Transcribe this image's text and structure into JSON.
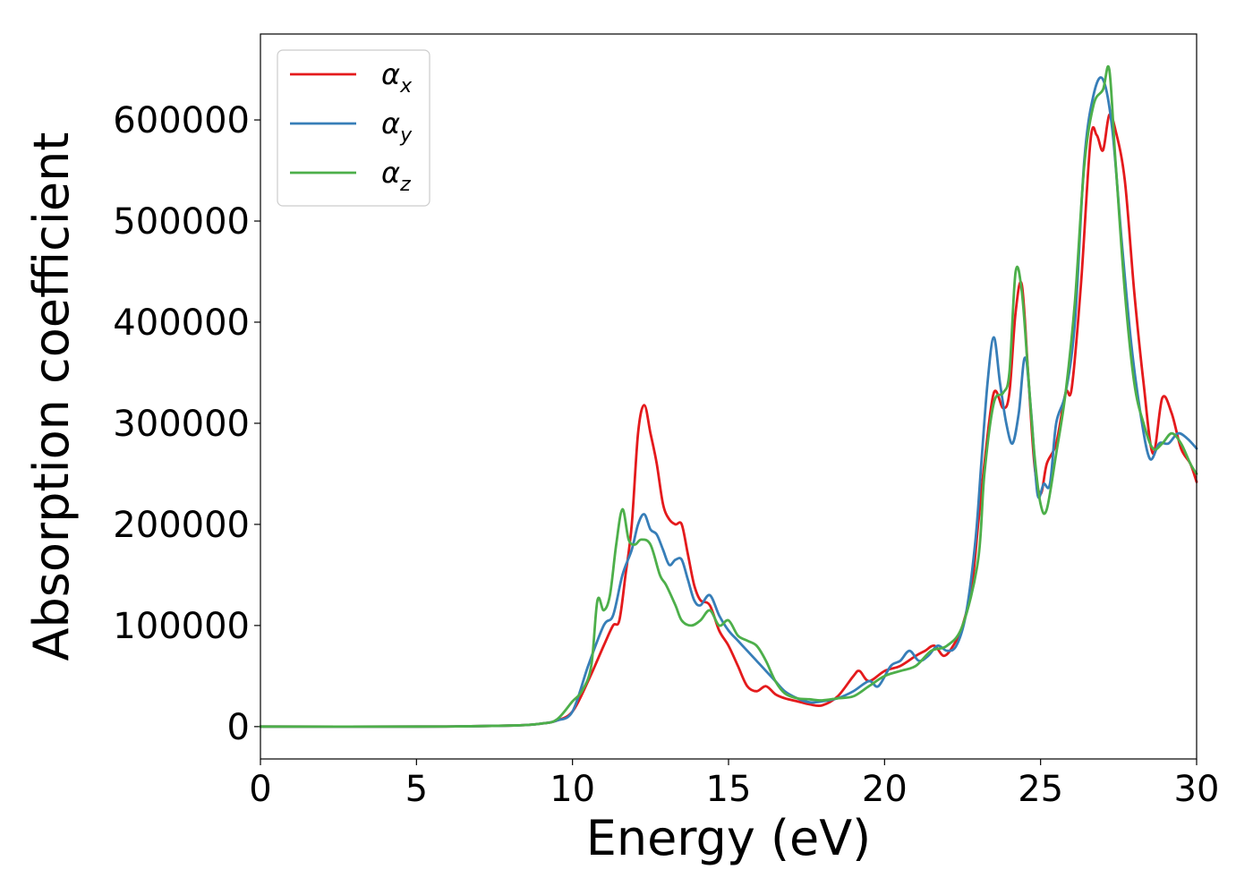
{
  "chart_data": {
    "type": "line",
    "xlabel": "Energy (eV)",
    "ylabel": "Absorption coefficient",
    "xlim": [
      0,
      30
    ],
    "ylim": [
      -32000,
      685000
    ],
    "x_ticks": [
      0,
      5,
      10,
      15,
      20,
      25,
      30
    ],
    "y_ticks": [
      0,
      100000,
      200000,
      300000,
      400000,
      500000,
      600000
    ],
    "grid": false,
    "legend_position": "top-left",
    "series": [
      {
        "name": "α",
        "subscript": "x",
        "color": "#e41a1c",
        "x": [
          0,
          5,
          8,
          9,
          9.5,
          10,
          10.5,
          11,
          11.3,
          11.5,
          11.7,
          11.9,
          12.1,
          12.3,
          12.5,
          12.7,
          12.9,
          13.1,
          13.3,
          13.5,
          13.7,
          13.9,
          14.1,
          14.4,
          14.7,
          15,
          15.3,
          15.6,
          15.9,
          16.2,
          16.5,
          16.8,
          17.2,
          17.6,
          18,
          18.5,
          19,
          19.2,
          19.5,
          20,
          20.5,
          21,
          21.3,
          21.6,
          21.9,
          22.2,
          22.5,
          22.8,
          23,
          23.2,
          23.5,
          23.8,
          24,
          24.2,
          24.4,
          24.6,
          24.8,
          25,
          25.2,
          25.5,
          25.8,
          26,
          26.3,
          26.6,
          26.8,
          27,
          27.2,
          27.4,
          27.7,
          28,
          28.3,
          28.6,
          28.9,
          29.2,
          29.5,
          29.8,
          30
        ],
        "y": [
          0,
          0,
          1000,
          3000,
          6000,
          15000,
          45000,
          80000,
          100000,
          105000,
          150000,
          200000,
          290000,
          318000,
          290000,
          260000,
          220000,
          205000,
          200000,
          200000,
          170000,
          140000,
          125000,
          120000,
          95000,
          80000,
          60000,
          40000,
          35000,
          40000,
          32000,
          28000,
          25000,
          22000,
          21000,
          30000,
          50000,
          55000,
          45000,
          55000,
          60000,
          70000,
          75000,
          80000,
          70000,
          80000,
          100000,
          140000,
          200000,
          260000,
          330000,
          315000,
          330000,
          410000,
          437000,
          350000,
          260000,
          230000,
          260000,
          280000,
          330000,
          335000,
          440000,
          580000,
          585000,
          570000,
          605000,
          590000,
          540000,
          430000,
          340000,
          270000,
          325000,
          310000,
          275000,
          260000,
          242000
        ]
      },
      {
        "name": "α",
        "subscript": "y",
        "color": "#377eb8",
        "x": [
          0,
          5,
          8,
          9,
          9.5,
          10,
          10.5,
          11,
          11.3,
          11.6,
          11.9,
          12.1,
          12.3,
          12.5,
          12.7,
          12.9,
          13.1,
          13.3,
          13.5,
          13.7,
          13.9,
          14.1,
          14.4,
          14.7,
          15,
          15.3,
          15.6,
          15.9,
          16.2,
          16.5,
          16.8,
          17.2,
          17.6,
          18,
          18.5,
          19,
          19.5,
          19.8,
          20.2,
          20.5,
          20.8,
          21.1,
          21.4,
          21.7,
          22,
          22.3,
          22.6,
          22.9,
          23.1,
          23.3,
          23.5,
          23.7,
          23.9,
          24.1,
          24.3,
          24.5,
          24.7,
          24.9,
          25.1,
          25.3,
          25.5,
          25.8,
          26.1,
          26.4,
          26.7,
          27,
          27.3,
          27.6,
          27.9,
          28.2,
          28.5,
          28.8,
          29.1,
          29.4,
          29.7,
          30
        ],
        "y": [
          0,
          0,
          1000,
          3000,
          6000,
          15000,
          60000,
          100000,
          110000,
          150000,
          175000,
          200000,
          210000,
          195000,
          190000,
          175000,
          160000,
          165000,
          165000,
          145000,
          125000,
          120000,
          130000,
          110000,
          95000,
          85000,
          75000,
          65000,
          55000,
          45000,
          35000,
          28000,
          24000,
          25000,
          28000,
          35000,
          45000,
          40000,
          60000,
          65000,
          75000,
          65000,
          70000,
          80000,
          75000,
          80000,
          110000,
          180000,
          260000,
          340000,
          385000,
          340000,
          300000,
          280000,
          310000,
          365000,
          310000,
          230000,
          240000,
          240000,
          300000,
          330000,
          400000,
          560000,
          625000,
          640000,
          590000,
          480000,
          380000,
          310000,
          265000,
          280000,
          280000,
          290000,
          285000,
          275000
        ]
      },
      {
        "name": "α",
        "subscript": "z",
        "color": "#4daf4a",
        "x": [
          0,
          5,
          8,
          9,
          9.5,
          10,
          10.3,
          10.6,
          10.8,
          11,
          11.2,
          11.4,
          11.6,
          11.8,
          12,
          12.2,
          12.5,
          12.8,
          13,
          13.3,
          13.5,
          13.8,
          14.1,
          14.4,
          14.7,
          15,
          15.3,
          15.6,
          15.9,
          16.2,
          16.5,
          16.8,
          17.2,
          17.6,
          18,
          18.5,
          19,
          19.5,
          20,
          20.5,
          21,
          21.5,
          22,
          22.5,
          23,
          23.2,
          23.5,
          23.8,
          24,
          24.2,
          24.4,
          24.6,
          24.8,
          25,
          25.2,
          25.5,
          25.8,
          26.1,
          26.4,
          26.7,
          27,
          27.2,
          27.4,
          27.7,
          28,
          28.3,
          28.6,
          28.9,
          29.2,
          29.5,
          29.8,
          30
        ],
        "y": [
          0,
          0,
          1000,
          3000,
          7000,
          25000,
          35000,
          60000,
          125000,
          115000,
          130000,
          180000,
          215000,
          185000,
          180000,
          185000,
          180000,
          150000,
          140000,
          120000,
          105000,
          100000,
          105000,
          115000,
          100000,
          105000,
          90000,
          85000,
          80000,
          65000,
          45000,
          33000,
          28000,
          27000,
          26000,
          28000,
          30000,
          40000,
          50000,
          55000,
          60000,
          75000,
          80000,
          100000,
          165000,
          250000,
          320000,
          330000,
          350000,
          450000,
          430000,
          350000,
          270000,
          220000,
          215000,
          270000,
          330000,
          420000,
          555000,
          615000,
          630000,
          650000,
          560000,
          430000,
          340000,
          300000,
          275000,
          280000,
          290000,
          280000,
          260000,
          250000
        ]
      }
    ]
  }
}
